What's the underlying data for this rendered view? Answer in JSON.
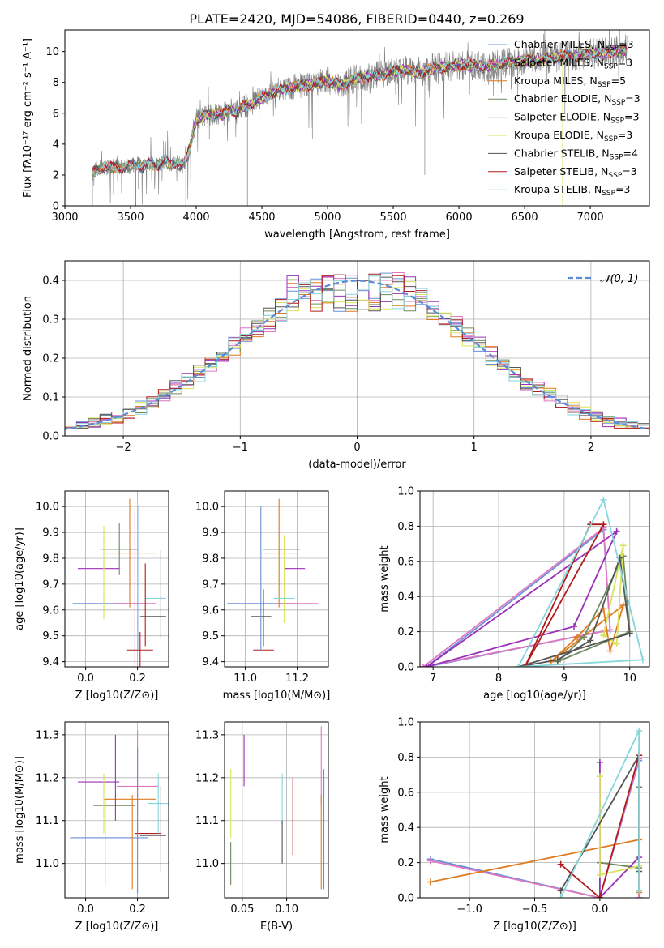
{
  "title": "PLATE=2420, MJD=54086, FIBERID=0440, z=0.269",
  "colors": {
    "chabrier_miles": "#6a8fd8",
    "salpeter_miles": "#e077c1",
    "kroupa_miles": "#e07a1f",
    "chabrier_elodie": "#6e8a5e",
    "salpeter_elodie": "#9b30b8",
    "kroupa_elodie": "#d7e35a",
    "chabrier_stelib": "#555555",
    "salpeter_stelib": "#b01c1c",
    "kroupa_stelib": "#85d6dc",
    "data_gray": "#808080",
    "normal_curve": "#5b8ad8"
  },
  "chart_data": [
    {
      "id": "spectrum",
      "type": "line",
      "xlabel": "wavelength [Angstrom, rest frame]",
      "ylabel": "Flux [f_λ10^-17 erg cm^-2 s^-1 A^-1]",
      "xlim": [
        3000,
        7450
      ],
      "ylim": [
        0,
        11.4
      ],
      "xticks": [
        "3000",
        "3500",
        "4000",
        "4500",
        "5000",
        "5500",
        "6000",
        "6500",
        "7000"
      ],
      "yticks": [
        "0",
        "2",
        "4",
        "6",
        "8",
        "10"
      ],
      "grid": false,
      "legend_position": "top-right",
      "legend": [
        {
          "label": "Chabrier MILES, N_SSP=3",
          "color": "#6a8fd8"
        },
        {
          "label": "Salpeter MILES, N_SSP=3",
          "color": "#e077c1"
        },
        {
          "label": "Kroupa MILES, N_SSP=5",
          "color": "#e07a1f"
        },
        {
          "label": "Chabrier ELODIE, N_SSP=3",
          "color": "#6e8a5e"
        },
        {
          "label": "Salpeter ELODIE, N_SSP=3",
          "color": "#9b30b8"
        },
        {
          "label": "Kroupa ELODIE, N_SSP=3",
          "color": "#d7e35a"
        },
        {
          "label": "Chabrier STELIB, N_SSP=4",
          "color": "#555555"
        },
        {
          "label": "Salpeter STELIB, N_SSP=3",
          "color": "#b01c1c"
        },
        {
          "label": "Kroupa STELIB, N_SSP=3",
          "color": "#85d6dc"
        }
      ],
      "continuum": {
        "x": [
          3210,
          3250,
          3300,
          3350,
          3400,
          3450,
          3500,
          3550,
          3600,
          3650,
          3700,
          3750,
          3800,
          3850,
          3900,
          3950,
          4000,
          4050,
          4100,
          4150,
          4200,
          4250,
          4300,
          4350,
          4400,
          4450,
          4500,
          4600,
          4700,
          4800,
          4900,
          5000,
          5100,
          5200,
          5300,
          5400,
          5500,
          5600,
          5700,
          5800,
          5900,
          6000,
          6100,
          6200,
          6300,
          6400,
          6500,
          6600,
          6700,
          6800,
          6900,
          7000,
          7100,
          7200,
          7280
        ],
        "y": [
          2.2,
          2.4,
          2.5,
          2.5,
          2.6,
          2.4,
          2.6,
          2.7,
          2.5,
          2.8,
          2.6,
          2.9,
          2.7,
          2.8,
          2.6,
          3.6,
          5.6,
          5.8,
          5.9,
          6.0,
          5.9,
          6.3,
          6.0,
          6.4,
          6.5,
          6.8,
          7.0,
          7.4,
          7.6,
          7.8,
          7.9,
          8.1,
          7.8,
          8.2,
          8.4,
          8.5,
          8.7,
          8.8,
          8.6,
          8.9,
          9.0,
          9.1,
          9.1,
          9.0,
          9.2,
          9.3,
          9.4,
          9.5,
          9.6,
          9.7,
          9.7,
          9.9,
          9.9,
          10.0,
          10.1
        ]
      }
    },
    {
      "id": "residuals",
      "type": "bar",
      "xlabel": "(data-model)/error",
      "ylabel": "Normed distribution",
      "xlim": [
        -2.5,
        2.5
      ],
      "ylim": [
        0,
        0.45
      ],
      "xticks": [
        "−2",
        "−1",
        "0",
        "1",
        "2"
      ],
      "yticks": [
        "0.0",
        "0.1",
        "0.2",
        "0.3",
        "0.4"
      ],
      "grid": true,
      "legend_position": "top-right",
      "legend": [
        {
          "label": "N(0,1)",
          "color": "#5b8ad8"
        }
      ],
      "bin_width": 0.1
    },
    {
      "id": "age_vs_Z",
      "type": "scatter",
      "xlabel": "Z [log10(Z/Z⊙)]",
      "ylabel": "age [log10(age/yr)]",
      "xlim": [
        -0.08,
        0.32
      ],
      "ylim": [
        9.38,
        10.06
      ],
      "xticks": [
        "0.0",
        "0.2"
      ],
      "yticks": [
        "9.4",
        "9.5",
        "9.6",
        "9.7",
        "9.8",
        "9.9",
        "10.0"
      ],
      "grid": true,
      "points": [
        {
          "model": "chabrier_miles",
          "x": 0.09,
          "xerr": 0.14,
          "y": 9.625,
          "yerr": 0.0
        },
        {
          "model": "salpeter_miles",
          "x": 0.19,
          "xerr": 0.08,
          "y": 9.625,
          "yerr": 0.37
        },
        {
          "model": "kroupa_miles",
          "x": 0.17,
          "xerr": 0.1,
          "y": 9.82,
          "yerr": 0.21
        },
        {
          "model": "chabrier_elodie",
          "x": 0.13,
          "xerr": 0.07,
          "y": 9.835,
          "yerr": 0.1
        },
        {
          "model": "salpeter_elodie",
          "x": 0.05,
          "xerr": 0.08,
          "y": 9.76,
          "yerr": 0.0
        },
        {
          "model": "kroupa_elodie",
          "x": 0.07,
          "xerr": 0.0,
          "y": 9.745,
          "yerr": 0.18
        },
        {
          "model": "chabrier_stelib",
          "x": 0.26,
          "xerr": 0.05,
          "y": 9.575,
          "yerr": 0.0
        },
        {
          "model": "salpeter_stelib",
          "x": 0.21,
          "xerr": 0.05,
          "y": 9.445,
          "yerr": 0.07
        },
        {
          "model": "kroupa_stelib",
          "x": 0.27,
          "xerr": 0.04,
          "y": 9.645,
          "yerr": 0.0
        },
        {
          "model": "chabrier_stelib",
          "x": 0.29,
          "xerr": 0.0,
          "y": 9.66,
          "yerr": 0.17
        },
        {
          "model": "salpeter_stelib",
          "x": 0.23,
          "xerr": 0.0,
          "y": 9.62,
          "yerr": 0.16
        },
        {
          "model": "chabrier_miles",
          "x": 0.205,
          "xerr": 0.0,
          "y": 9.72,
          "yerr": 0.28
        }
      ]
    },
    {
      "id": "age_vs_mass",
      "type": "scatter",
      "xlabel": "mass [log10(M/M⊙)]",
      "ylabel": "",
      "xlim": [
        10.92,
        11.32
      ],
      "ylim": [
        9.38,
        10.06
      ],
      "xticks": [
        "11.0",
        "11.2"
      ],
      "yticks": [
        "9.4",
        "9.5",
        "9.6",
        "9.7",
        "9.8",
        "9.9",
        "10.0"
      ],
      "grid": true,
      "points": [
        {
          "model": "chabrier_miles",
          "x": 11.06,
          "xerr": 0.13,
          "y": 9.625,
          "yerr": 0.0
        },
        {
          "model": "salpeter_miles",
          "x": 11.2,
          "xerr": 0.08,
          "y": 9.625,
          "yerr": 0.0
        },
        {
          "model": "kroupa_miles",
          "x": 11.13,
          "xerr": 0.07,
          "y": 9.82,
          "yerr": 0.21
        },
        {
          "model": "chabrier_elodie",
          "x": 11.14,
          "xerr": 0.07,
          "y": 9.835,
          "yerr": 0.0
        },
        {
          "model": "salpeter_elodie",
          "x": 11.19,
          "xerr": 0.04,
          "y": 9.76,
          "yerr": 0.0
        },
        {
          "model": "kroupa_elodie",
          "x": 11.15,
          "xerr": 0.0,
          "y": 9.72,
          "yerr": 0.17
        },
        {
          "model": "chabrier_stelib",
          "x": 11.06,
          "xerr": 0.04,
          "y": 9.575,
          "yerr": 0.0
        },
        {
          "model": "salpeter_stelib",
          "x": 11.07,
          "xerr": 0.04,
          "y": 9.445,
          "yerr": 0.0
        },
        {
          "model": "kroupa_stelib",
          "x": 11.15,
          "xerr": 0.04,
          "y": 9.645,
          "yerr": 0.0
        },
        {
          "model": "chabrier_miles",
          "x": 11.06,
          "xerr": 0.0,
          "y": 9.72,
          "yerr": 0.28
        },
        {
          "model": "chabrier_stelib",
          "x": 11.07,
          "xerr": 0.0,
          "y": 9.57,
          "yerr": 0.11
        }
      ]
    },
    {
      "id": "massweight_vs_age",
      "type": "line",
      "xlabel": "age [log10(age/yr)]",
      "ylabel": "mass weight",
      "xlim": [
        6.8,
        10.3
      ],
      "ylim": [
        0,
        1
      ],
      "xticks": [
        "7",
        "8",
        "9",
        "10"
      ],
      "yticks": [
        "0.0",
        "0.2",
        "0.4",
        "0.6",
        "0.8",
        "1.0"
      ],
      "grid": true,
      "series": [
        {
          "model": "chabrier_miles",
          "x": [
            6.9,
            9.6,
            9.7,
            6.9
          ],
          "y": [
            0.0,
            0.78,
            0.21,
            0.0
          ]
        },
        {
          "model": "salpeter_miles",
          "x": [
            6.85,
            9.6,
            9.7,
            6.85
          ],
          "y": [
            0.0,
            0.79,
            0.21,
            0.0
          ]
        },
        {
          "model": "kroupa_miles",
          "x": [
            8.8,
            9.2,
            9.6,
            9.7,
            9.9,
            8.8
          ],
          "y": [
            0.03,
            0.17,
            0.33,
            0.09,
            0.35,
            0.03
          ]
        },
        {
          "model": "chabrier_elodie",
          "x": [
            8.9,
            9.3,
            9.9,
            10.0,
            8.9
          ],
          "y": [
            0.03,
            0.17,
            0.63,
            0.2,
            0.03
          ]
        },
        {
          "model": "salpeter_elodie",
          "x": [
            6.9,
            9.15,
            9.8,
            6.9
          ],
          "y": [
            0.0,
            0.23,
            0.77,
            0.0
          ]
        },
        {
          "model": "kroupa_elodie",
          "x": [
            9.6,
            9.8,
            9.9,
            9.6
          ],
          "y": [
            0.18,
            0.13,
            0.69,
            0.18
          ]
        },
        {
          "model": "chabrier_stelib",
          "x": [
            8.3,
            8.9,
            9.4,
            9.85,
            10.0,
            8.3
          ],
          "y": [
            0.0,
            0.04,
            0.15,
            0.62,
            0.19,
            0.0
          ]
        },
        {
          "model": "salpeter_stelib",
          "x": [
            8.4,
            9.4,
            9.6,
            8.4
          ],
          "y": [
            0.0,
            0.81,
            0.81,
            0.0
          ]
        },
        {
          "model": "kroupa_stelib",
          "x": [
            8.3,
            9.6,
            10.2,
            8.3
          ],
          "y": [
            0.0,
            0.95,
            0.04,
            0.0
          ]
        }
      ]
    },
    {
      "id": "mass_vs_Z",
      "type": "scatter",
      "xlabel": "Z [log10(Z/Z⊙)]",
      "ylabel": "mass [log10(M/M⊙)]",
      "xlim": [
        -0.08,
        0.32
      ],
      "ylim": [
        10.92,
        11.33
      ],
      "xticks": [
        "0.0",
        "0.2"
      ],
      "yticks": [
        "11.0",
        "11.1",
        "11.2",
        "11.3"
      ],
      "grid": true,
      "points": [
        {
          "model": "chabrier_miles",
          "x": 0.09,
          "xerr": 0.15,
          "y": 11.06,
          "yerr": 0.0
        },
        {
          "model": "salpeter_miles",
          "x": 0.2,
          "xerr": 0.08,
          "y": 11.18,
          "yerr": 0.13
        },
        {
          "model": "kroupa_miles",
          "x": 0.17,
          "xerr": 0.1,
          "y": 11.15,
          "yerr": 0.0
        },
        {
          "model": "chabrier_elodie",
          "x": 0.11,
          "xerr": 0.08,
          "y": 11.135,
          "yerr": 0.0
        },
        {
          "model": "salpeter_elodie",
          "x": 0.05,
          "xerr": 0.08,
          "y": 11.19,
          "yerr": 0.0
        },
        {
          "model": "kroupa_elodie",
          "x": 0.07,
          "xerr": 0.0,
          "y": 11.14,
          "yerr": 0.07
        },
        {
          "model": "chabrier_stelib",
          "x": 0.26,
          "xerr": 0.05,
          "y": 11.065,
          "yerr": 0.0
        },
        {
          "model": "salpeter_stelib",
          "x": 0.24,
          "xerr": 0.05,
          "y": 11.07,
          "yerr": 0.0
        },
        {
          "model": "kroupa_stelib",
          "x": 0.28,
          "xerr": 0.04,
          "y": 11.14,
          "yerr": 0.07
        },
        {
          "model": "salpeter_elodie",
          "x": 0.115,
          "xerr": 0.0,
          "y": 11.2,
          "yerr": 0.1
        },
        {
          "model": "chabrier_elodie",
          "x": 0.075,
          "xerr": 0.0,
          "y": 11.05,
          "yerr": 0.1
        },
        {
          "model": "chabrier_stelib",
          "x": 0.29,
          "xerr": 0.0,
          "y": 11.08,
          "yerr": 0.1
        },
        {
          "model": "kroupa_miles",
          "x": 0.18,
          "xerr": 0.0,
          "y": 11.05,
          "yerr": 0.11
        },
        {
          "model": "chabrier_miles",
          "x": 0.2,
          "xerr": 0.0,
          "y": 11.1,
          "yerr": 0.17
        }
      ]
    },
    {
      "id": "mass_vs_ebv",
      "type": "scatter",
      "xlabel": "E(B-V)",
      "ylabel": "",
      "xlim": [
        0.03,
        0.147
      ],
      "ylim": [
        10.92,
        11.33
      ],
      "xticks": [
        "0.05",
        "0.10"
      ],
      "yticks": [
        "11.0",
        "11.1",
        "11.2",
        "11.3"
      ],
      "grid": true,
      "points": [
        {
          "model": "kroupa_elodie",
          "x": 0.037,
          "xerr": 0.0,
          "y": 11.14,
          "yerr": 0.08
        },
        {
          "model": "chabrier_elodie",
          "x": 0.037,
          "xerr": 0.0,
          "y": 11.0,
          "yerr": 0.05
        },
        {
          "model": "salpeter_elodie",
          "x": 0.052,
          "xerr": 0.0,
          "y": 11.24,
          "yerr": 0.06
        },
        {
          "model": "kroupa_stelib",
          "x": 0.095,
          "xerr": 0.0,
          "y": 11.15,
          "yerr": 0.06
        },
        {
          "model": "chabrier_stelib",
          "x": 0.095,
          "xerr": 0.0,
          "y": 11.05,
          "yerr": 0.05
        },
        {
          "model": "salpeter_stelib",
          "x": 0.107,
          "xerr": 0.0,
          "y": 11.11,
          "yerr": 0.09
        },
        {
          "model": "salpeter_miles",
          "x": 0.139,
          "xerr": 0.0,
          "y": 11.23,
          "yerr": 0.09
        },
        {
          "model": "kroupa_miles",
          "x": 0.139,
          "xerr": 0.0,
          "y": 11.05,
          "yerr": 0.11
        },
        {
          "model": "chabrier_miles",
          "x": 0.142,
          "xerr": 0.0,
          "y": 11.08,
          "yerr": 0.14
        }
      ]
    },
    {
      "id": "massweight_vs_Z",
      "type": "line",
      "xlabel": "Z [log10(Z/Z⊙)]",
      "ylabel": "mass weight",
      "xlim": [
        -1.38,
        0.38
      ],
      "ylim": [
        0,
        1
      ],
      "xticks": [
        "−1.0",
        "−0.5",
        "0.0"
      ],
      "yticks": [
        "0.0",
        "0.2",
        "0.4",
        "0.6",
        "0.8",
        "1.0"
      ],
      "grid": true,
      "series": [
        {
          "model": "chabrier_miles",
          "x": [
            -1.3,
            0.0,
            0.3,
            0.3
          ],
          "y": [
            0.22,
            0.0,
            0.78,
            0.0
          ]
        },
        {
          "model": "salpeter_miles",
          "x": [
            -1.3,
            0.0,
            0.3,
            0.3
          ],
          "y": [
            0.21,
            0.0,
            0.79,
            0.0
          ]
        },
        {
          "model": "kroupa_miles",
          "x": [
            -1.3,
            0.3,
            0.3
          ],
          "y": [
            0.09,
            0.33,
            0.03
          ]
        },
        {
          "model": "chabrier_elodie",
          "x": [
            0.0,
            0.3,
            0.3
          ],
          "y": [
            0.2,
            0.17,
            0.63
          ]
        },
        {
          "model": "salpeter_elodie",
          "x": [
            0.0,
            0.0,
            0.3,
            0.0
          ],
          "y": [
            0.77,
            0.0,
            0.23,
            0.0
          ]
        },
        {
          "model": "kroupa_elodie",
          "x": [
            0.0,
            0.0,
            0.3
          ],
          "y": [
            0.69,
            0.13,
            0.18
          ]
        },
        {
          "model": "chabrier_stelib",
          "x": [
            -0.3,
            0.3,
            0.3
          ],
          "y": [
            0.04,
            0.81,
            0.15
          ]
        },
        {
          "model": "salpeter_stelib",
          "x": [
            -0.3,
            0.0,
            0.3
          ],
          "y": [
            0.19,
            0.0,
            0.81
          ]
        },
        {
          "model": "kroupa_stelib",
          "x": [
            -0.3,
            0.3,
            0.3
          ],
          "y": [
            0.0,
            0.95,
            0.04
          ]
        }
      ]
    }
  ]
}
